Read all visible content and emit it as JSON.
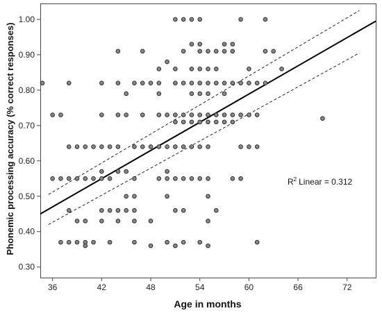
{
  "chart_data": {
    "type": "scatter",
    "xlabel": "Age in months",
    "ylabel": "Phonemic processing accuracy (% correct responses)",
    "xlim": [
      34.5,
      75.5
    ],
    "ylim": [
      0.27,
      1.045
    ],
    "xticks": [
      "36",
      "42",
      "48",
      "54",
      "60",
      "66",
      "72"
    ],
    "yticks": [
      "0.30",
      "0.40",
      "0.50",
      "0.60",
      "0.70",
      "0.80",
      "0.90",
      "1.00"
    ],
    "grid": false,
    "annotation": {
      "r2_label": "R",
      "r2_sup": "2",
      "r2_text": "Linear = 0.312"
    },
    "regression": {
      "fit": [
        [
          34.5,
          0.45
        ],
        [
          75.5,
          0.995
        ]
      ],
      "ci_upper": [
        [
          35.5,
          0.505
        ],
        [
          73.5,
          1.025
        ]
      ],
      "ci_lower": [
        [
          35.5,
          0.42
        ],
        [
          73.5,
          0.905
        ]
      ]
    },
    "points": [
      [
        34.5,
        0.82
      ],
      [
        36,
        0.73
      ],
      [
        36,
        0.55
      ],
      [
        37,
        0.73
      ],
      [
        37,
        0.55
      ],
      [
        37,
        0.37
      ],
      [
        38,
        0.82
      ],
      [
        38,
        0.64
      ],
      [
        38,
        0.55
      ],
      [
        38,
        0.46
      ],
      [
        38,
        0.37
      ],
      [
        39,
        0.64
      ],
      [
        39,
        0.55
      ],
      [
        39,
        0.43
      ],
      [
        39,
        0.37
      ],
      [
        40,
        0.64
      ],
      [
        40,
        0.55
      ],
      [
        40,
        0.43
      ],
      [
        40,
        0.37
      ],
      [
        40,
        0.36
      ],
      [
        41,
        0.64
      ],
      [
        41,
        0.55
      ],
      [
        41,
        0.37
      ],
      [
        42,
        0.82
      ],
      [
        42,
        0.73
      ],
      [
        42,
        0.64
      ],
      [
        42,
        0.57
      ],
      [
        42,
        0.55
      ],
      [
        42,
        0.46
      ],
      [
        42,
        0.43
      ],
      [
        43,
        0.64
      ],
      [
        43,
        0.55
      ],
      [
        43,
        0.46
      ],
      [
        43,
        0.37
      ],
      [
        44,
        0.91
      ],
      [
        44,
        0.82
      ],
      [
        44,
        0.73
      ],
      [
        44,
        0.64
      ],
      [
        44,
        0.57
      ],
      [
        44,
        0.46
      ],
      [
        44,
        0.43
      ],
      [
        45,
        0.79
      ],
      [
        45,
        0.73
      ],
      [
        45,
        0.57
      ],
      [
        45,
        0.5
      ],
      [
        45,
        0.46
      ],
      [
        46,
        0.82
      ],
      [
        46,
        0.64
      ],
      [
        46,
        0.55
      ],
      [
        46,
        0.5
      ],
      [
        46,
        0.46
      ],
      [
        46,
        0.43
      ],
      [
        46,
        0.37
      ],
      [
        47,
        0.91
      ],
      [
        47,
        0.82
      ],
      [
        47,
        0.73
      ],
      [
        47,
        0.64
      ],
      [
        48,
        0.82
      ],
      [
        48,
        0.64
      ],
      [
        48,
        0.43
      ],
      [
        48,
        0.36
      ],
      [
        49,
        0.86
      ],
      [
        49,
        0.82
      ],
      [
        49,
        0.79
      ],
      [
        49,
        0.73
      ],
      [
        49,
        0.64
      ],
      [
        49,
        0.55
      ],
      [
        50,
        0.88
      ],
      [
        50,
        0.73
      ],
      [
        50,
        0.64
      ],
      [
        50,
        0.57
      ],
      [
        50,
        0.55
      ],
      [
        50,
        0.5
      ],
      [
        50,
        0.37
      ],
      [
        51,
        1.0
      ],
      [
        51,
        0.86
      ],
      [
        51,
        0.82
      ],
      [
        51,
        0.73
      ],
      [
        51,
        0.71
      ],
      [
        51,
        0.64
      ],
      [
        51,
        0.55
      ],
      [
        51,
        0.46
      ],
      [
        51,
        0.36
      ],
      [
        52,
        1.0
      ],
      [
        52,
        0.91
      ],
      [
        52,
        0.82
      ],
      [
        52,
        0.73
      ],
      [
        52,
        0.71
      ],
      [
        52,
        0.64
      ],
      [
        52,
        0.55
      ],
      [
        52,
        0.46
      ],
      [
        52,
        0.37
      ],
      [
        53,
        1.0
      ],
      [
        53,
        0.93
      ],
      [
        53,
        0.86
      ],
      [
        53,
        0.82
      ],
      [
        53,
        0.79
      ],
      [
        53,
        0.73
      ],
      [
        53,
        0.71
      ],
      [
        53,
        0.64
      ],
      [
        53,
        0.55
      ],
      [
        54,
        1.0
      ],
      [
        54,
        0.93
      ],
      [
        54,
        0.91
      ],
      [
        54,
        0.86
      ],
      [
        54,
        0.82
      ],
      [
        54,
        0.79
      ],
      [
        54,
        0.73
      ],
      [
        54,
        0.71
      ],
      [
        54,
        0.64
      ],
      [
        54,
        0.55
      ],
      [
        54,
        0.37
      ],
      [
        55,
        0.91
      ],
      [
        55,
        0.86
      ],
      [
        55,
        0.82
      ],
      [
        55,
        0.79
      ],
      [
        55,
        0.73
      ],
      [
        55,
        0.71
      ],
      [
        55,
        0.64
      ],
      [
        55,
        0.55
      ],
      [
        55,
        0.5
      ],
      [
        55,
        0.43
      ],
      [
        55,
        0.36
      ],
      [
        56,
        0.91
      ],
      [
        56,
        0.86
      ],
      [
        56,
        0.82
      ],
      [
        56,
        0.73
      ],
      [
        56,
        0.71
      ],
      [
        56,
        0.46
      ],
      [
        57,
        0.93
      ],
      [
        57,
        0.91
      ],
      [
        57,
        0.82
      ],
      [
        57,
        0.79
      ],
      [
        57,
        0.73
      ],
      [
        57,
        0.71
      ],
      [
        58,
        0.93
      ],
      [
        58,
        0.91
      ],
      [
        58,
        0.82
      ],
      [
        58,
        0.73
      ],
      [
        58,
        0.71
      ],
      [
        58,
        0.55
      ],
      [
        59,
        1.0
      ],
      [
        59,
        0.82
      ],
      [
        59,
        0.73
      ],
      [
        59,
        0.64
      ],
      [
        59,
        0.55
      ],
      [
        60,
        0.86
      ],
      [
        60,
        0.82
      ],
      [
        60,
        0.73
      ],
      [
        60,
        0.64
      ],
      [
        61,
        0.82
      ],
      [
        61,
        0.73
      ],
      [
        61,
        0.64
      ],
      [
        61,
        0.37
      ],
      [
        62,
        1.0
      ],
      [
        62,
        0.91
      ],
      [
        62,
        0.82
      ],
      [
        63,
        0.91
      ],
      [
        64,
        0.86
      ],
      [
        69,
        0.72
      ]
    ]
  }
}
